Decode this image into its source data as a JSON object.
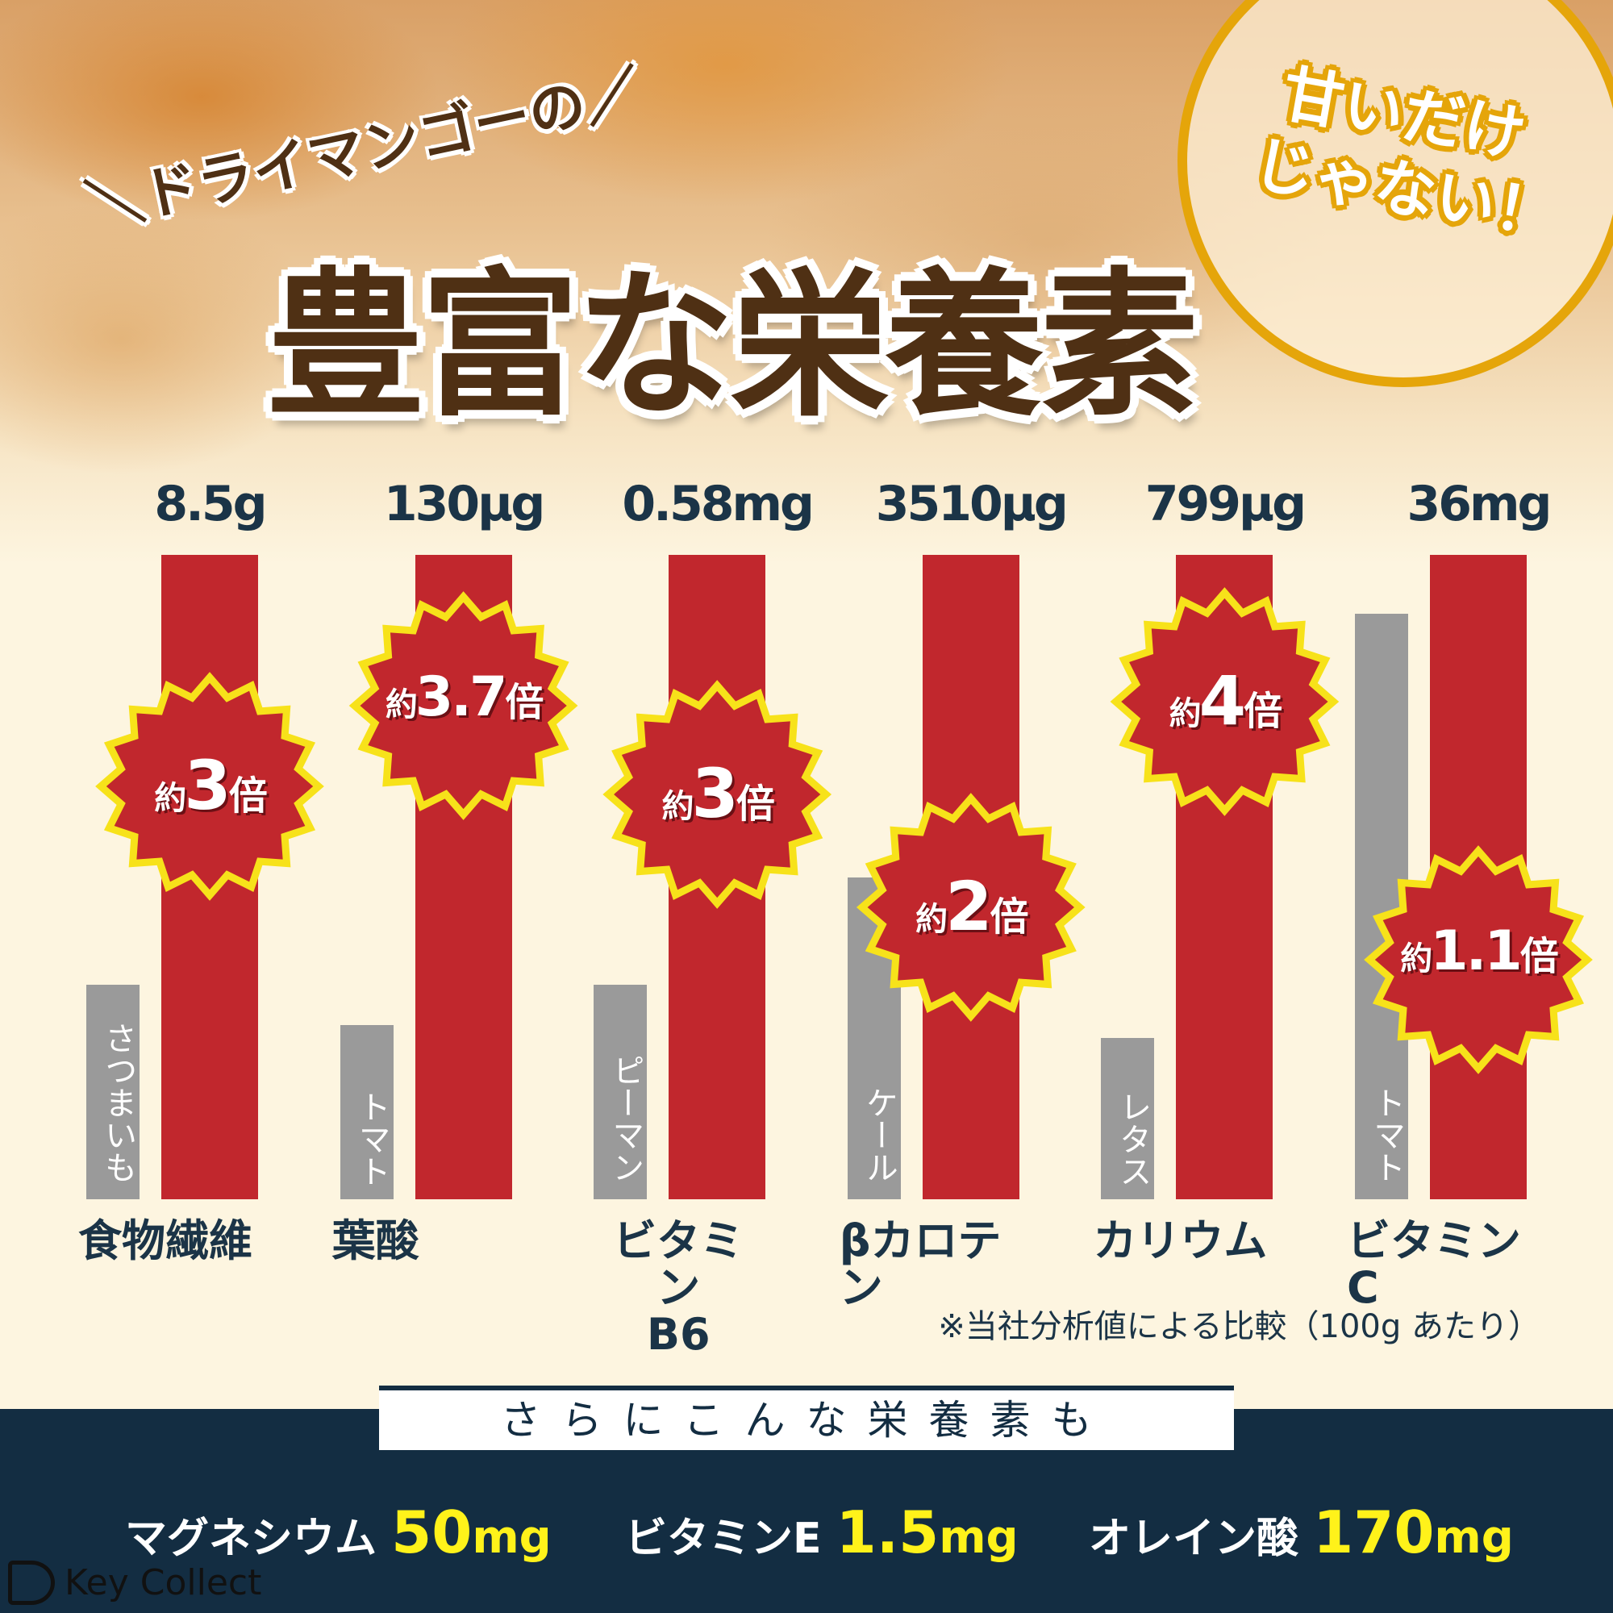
{
  "header": {
    "subtitle": "＼ドライマンゴーの／",
    "title": "豊富な栄養素",
    "badge_line1": "甘いだけ",
    "badge_line2": "じゃない！"
  },
  "colors": {
    "mango_bar": "#c1272d",
    "comparison_bar": "#9a9a9a",
    "burst_outline": "#f7e21a",
    "text_dark": "#1b3447",
    "navy": "#132d42",
    "gold": "#e5a50a"
  },
  "chart_data": {
    "type": "bar",
    "title": "",
    "categories": [
      "食物繊維",
      "葉酸",
      "ビタミンB6",
      "βカロテン",
      "カリウム",
      "ビタミンC"
    ],
    "series": [
      {
        "values_label": [
          "8.5g",
          "130μg",
          "0.58mg",
          "3510μg",
          "799μg",
          "36mg"
        ]
      },
      {
        "comparison_foods": [
          "さつまいも",
          "トマト",
          "ピーマン",
          "ケール",
          "レタス",
          "トマト"
        ]
      }
    ],
    "multipliers": [
      3,
      3.7,
      3,
      2,
      4,
      1.1
    ],
    "multiplier_labels": [
      {
        "pre": "約",
        "num": "3",
        "post": "倍"
      },
      {
        "pre": "約",
        "num": "3.7",
        "post": "倍"
      },
      {
        "pre": "約",
        "num": "3",
        "post": "倍"
      },
      {
        "pre": "約",
        "num": "2",
        "post": "倍"
      },
      {
        "pre": "約",
        "num": "4",
        "post": "倍"
      },
      {
        "pre": "約",
        "num": "1.1",
        "post": "倍"
      }
    ],
    "category_lines": [
      [
        "食物繊維"
      ],
      [
        "葉酸"
      ],
      [
        "ビタミン",
        "B6"
      ],
      [
        "βカロテン"
      ],
      [
        "カリウム"
      ],
      [
        "ビタミンC"
      ]
    ],
    "note": "※当社分析値による比較（100g あたり）"
  },
  "more": {
    "heading": "さらにこんな栄養素も",
    "items": [
      {
        "name": "マグネシウム",
        "num": "50",
        "unit": "mg"
      },
      {
        "name": "ビタミンE",
        "num": "1.5",
        "unit": "mg"
      },
      {
        "name": "オレイン酸",
        "num": "170",
        "unit": "mg"
      }
    ]
  },
  "logo": {
    "text": "Key Collect"
  }
}
